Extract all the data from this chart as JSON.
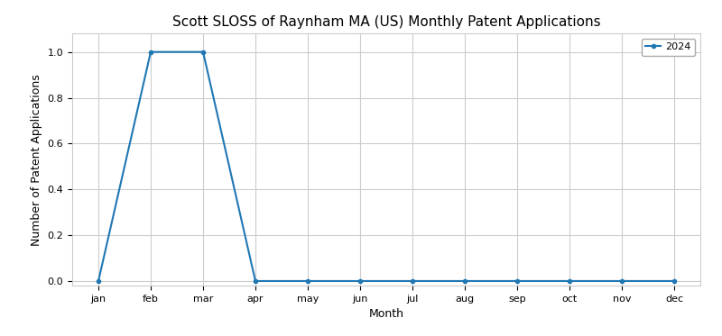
{
  "title": "Scott SLOSS of Raynham MA (US) Monthly Patent Applications",
  "xlabel": "Month",
  "ylabel": "Number of Patent Applications",
  "months": [
    "jan",
    "feb",
    "mar",
    "apr",
    "may",
    "jun",
    "jul",
    "aug",
    "sep",
    "oct",
    "nov",
    "dec"
  ],
  "values_2024": [
    0,
    1,
    1,
    0,
    0,
    0,
    0,
    0,
    0,
    0,
    0,
    0
  ],
  "line_color": "#1f77b4",
  "marker": "o",
  "marker_size": 3,
  "line_width": 1.5,
  "legend_label": "2024",
  "ylim": [
    -0.02,
    1.08
  ],
  "yticks": [
    0.0,
    0.2,
    0.4,
    0.6,
    0.8,
    1.0
  ],
  "grid_color": "#cccccc",
  "background_color": "#ffffff",
  "title_fontsize": 11,
  "axis_label_fontsize": 9,
  "tick_fontsize": 8
}
